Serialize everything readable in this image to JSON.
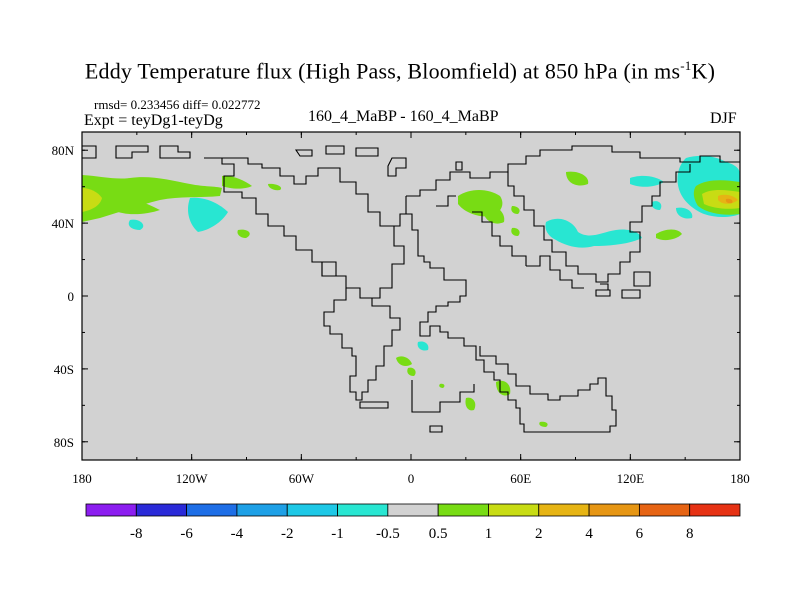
{
  "chart_data": {
    "type": "map",
    "title_main": "Eddy Temperature flux (High Pass, Bloomfield) at 850 hPa (in ms",
    "title_sup": "-1",
    "title_end": "K)",
    "stats": "rmsd= 0.233456 diff= 0.022772",
    "experiment": "Expt = teyDg1-teyDg",
    "center_label": "160_4_MaBP - 160_4_MaBP",
    "season": "DJF",
    "lon_ticks": [
      "180",
      "120W",
      "60W",
      "0",
      "60E",
      "120E",
      "180"
    ],
    "lat_ticks": [
      "80N",
      "40N",
      "0",
      "40S",
      "80S"
    ],
    "colorbar": {
      "labels": [
        "-8",
        "-6",
        "-4",
        "-2",
        "-1",
        "-0.5",
        "0.5",
        "1",
        "2",
        "4",
        "6",
        "8"
      ],
      "colors": [
        "#8c1ef0",
        "#2a2ad8",
        "#1e6ee6",
        "#1ea0e6",
        "#1ec8e6",
        "#28e6d2",
        "#d2d2d2",
        "#78dc14",
        "#c8dc14",
        "#e6b414",
        "#e69614",
        "#e66414",
        "#e63214"
      ]
    },
    "axes": {
      "lon_range": [
        -180,
        180
      ],
      "lat_range": [
        -90,
        90
      ]
    },
    "background_color": "#d2d2d2"
  }
}
